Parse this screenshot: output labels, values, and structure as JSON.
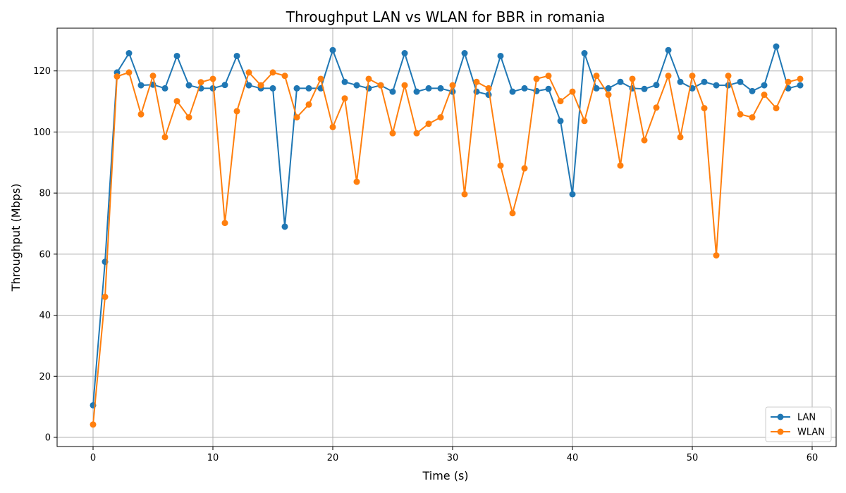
{
  "chart_data": {
    "type": "line",
    "title": "Throughput LAN vs WLAN for BBR in romania",
    "xlabel": "Time (s)",
    "ylabel": "Throughput (Mbps)",
    "xlim": [
      -3,
      62
    ],
    "ylim": [
      -3,
      134
    ],
    "xticks": [
      0,
      10,
      20,
      30,
      40,
      50,
      60
    ],
    "yticks": [
      0,
      20,
      40,
      60,
      80,
      100,
      120
    ],
    "grid": true,
    "legend_position": "lower-right",
    "x": [
      0,
      1,
      2,
      3,
      4,
      5,
      6,
      7,
      8,
      9,
      10,
      11,
      12,
      13,
      14,
      15,
      16,
      17,
      18,
      19,
      20,
      21,
      22,
      23,
      24,
      25,
      26,
      27,
      28,
      29,
      30,
      31,
      32,
      33,
      34,
      35,
      36,
      37,
      38,
      39,
      40,
      41,
      42,
      43,
      44,
      45,
      46,
      47,
      48,
      49,
      50,
      51,
      52,
      53,
      54,
      55,
      56,
      57,
      58,
      59
    ],
    "series": [
      {
        "name": "LAN",
        "color": "#1f77b4",
        "values": [
          10.5,
          57.5,
          119.5,
          125.8,
          115.3,
          115.5,
          114.3,
          124.9,
          115.3,
          114.3,
          114.3,
          115.4,
          124.9,
          115.3,
          114.3,
          114.3,
          69,
          114.3,
          114.3,
          114.3,
          126.8,
          116.4,
          115.3,
          114.3,
          115.3,
          113.2,
          125.8,
          113.2,
          114.3,
          114.3,
          113.2,
          125.8,
          113.2,
          112.2,
          124.9,
          113.2,
          114.3,
          113.4,
          114.1,
          103.6,
          79.6,
          125.8,
          114.3,
          114.3,
          116.4,
          114.3,
          114.1,
          115.4,
          126.8,
          116.4,
          114.3,
          116.4,
          115.3,
          115.3,
          116.4,
          113.4,
          115.3,
          128,
          114.3,
          115.3
        ]
      },
      {
        "name": "WLAN",
        "color": "#ff7f0e",
        "values": [
          4.2,
          46,
          118.2,
          119.5,
          105.8,
          118.4,
          98.3,
          110.1,
          104.8,
          116.3,
          117.4,
          70.2,
          106.8,
          119.5,
          115.3,
          119.5,
          118.4,
          104.8,
          109,
          117.4,
          101.6,
          111,
          83.7,
          117.4,
          115.3,
          99.6,
          115.3,
          99.6,
          102.7,
          104.8,
          115.3,
          79.6,
          116.4,
          114.3,
          89,
          73.4,
          88.1,
          117.4,
          118.4,
          110.1,
          113.2,
          103.6,
          118.4,
          112.2,
          89,
          117.4,
          97.3,
          108,
          118.4,
          98.3,
          118.4,
          107.8,
          59.6,
          118.4,
          105.8,
          104.8,
          112.2,
          107.8,
          116.4,
          117.4
        ]
      }
    ]
  }
}
